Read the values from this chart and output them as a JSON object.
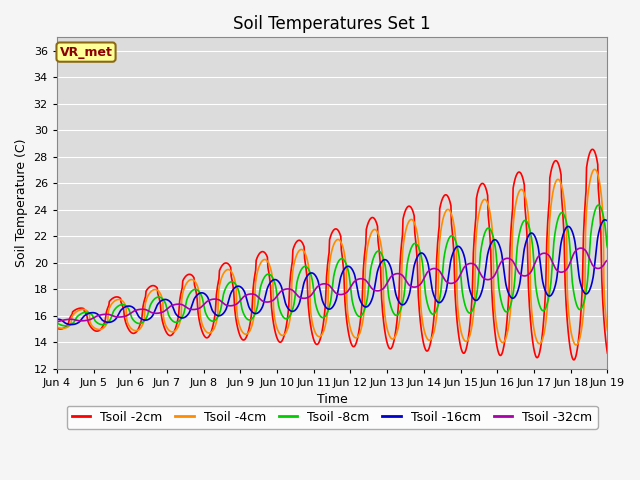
{
  "title": "Soil Temperatures Set 1",
  "ylabel": "Soil Temperature (C)",
  "xlabel": "Time",
  "ylim": [
    12,
    37
  ],
  "yticks": [
    12,
    14,
    16,
    18,
    20,
    22,
    24,
    26,
    28,
    30,
    32,
    34,
    36
  ],
  "x_tick_labels": [
    "Jun 4",
    "Jun 5",
    "Jun 6",
    "Jun 7",
    "Jun 8",
    "Jun 9",
    "Jun 10",
    "Jun 11",
    "Jun 12",
    "Jun 13",
    "Jun 14",
    "Jun 15",
    "Jun 16",
    "Jun 17",
    "Jun 18",
    "Jun 19"
  ],
  "x_tick_positions": [
    0,
    24,
    48,
    72,
    96,
    120,
    144,
    168,
    192,
    216,
    240,
    264,
    288,
    312,
    336,
    360
  ],
  "lines": [
    {
      "label": "Tsoil -2cm",
      "color": "#ff0000"
    },
    {
      "label": "Tsoil -4cm",
      "color": "#ff8c00"
    },
    {
      "label": "Tsoil -8cm",
      "color": "#00cc00"
    },
    {
      "label": "Tsoil -16cm",
      "color": "#0000cc"
    },
    {
      "label": "Tsoil -32cm",
      "color": "#aa00aa"
    }
  ],
  "legend_label": "VR_met",
  "legend_label_color": "#8b0000",
  "legend_box_facecolor": "#ffff99",
  "legend_box_edgecolor": "#8b6914",
  "plot_bg_color": "#dcdcdc",
  "fig_bg_color": "#f5f5f5",
  "grid_color": "#ffffff",
  "title_fontsize": 12,
  "axis_label_fontsize": 9,
  "tick_fontsize": 8,
  "legend_fontsize": 9,
  "linewidth": 1.2,
  "n_points": 1081
}
